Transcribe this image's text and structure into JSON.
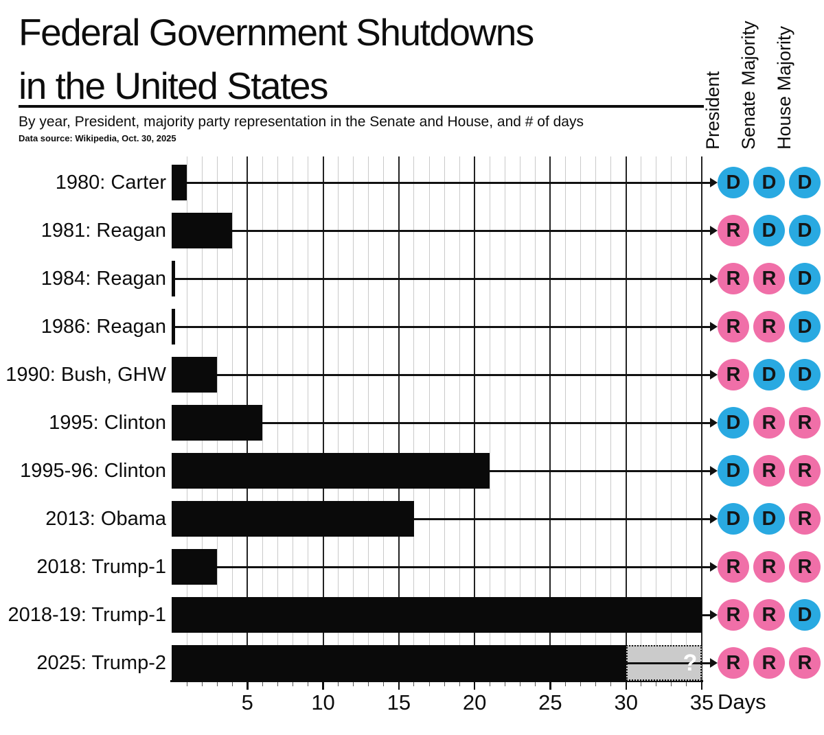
{
  "header": {
    "title_line1": "Federal Government Shutdowns",
    "title_line2": "in the United States",
    "subtitle": "By year, President, majority party representation in the Senate and House, and # of days",
    "source": "Data source: Wikipedia, Oct. 30, 2025"
  },
  "columns": [
    "President",
    "Senate Majority",
    "House Majority"
  ],
  "axis": {
    "ticks": [
      5,
      10,
      15,
      20,
      25,
      30,
      35
    ],
    "max": 35,
    "unit_label": "Days"
  },
  "party_colors": {
    "D": "#29a9e1",
    "R": "#f06fa8",
    "letter": "#151515"
  },
  "bar_color": "#0a0a0a",
  "estimate_style": {
    "fill": "#cbcbcb",
    "label_color": "#ffffff"
  },
  "chart_data": {
    "type": "bar",
    "orientation": "horizontal",
    "title": "Federal Government Shutdowns in the United States",
    "subtitle": "By year, President, majority party representation in the Senate and House, and # of days",
    "source": "Data source: Wikipedia, Oct. 30, 2025",
    "xlabel": "Days",
    "xlim": [
      0,
      35
    ],
    "grid": true,
    "rows": [
      {
        "label": "1980: Carter",
        "days": 1,
        "president": "D",
        "senate": "D",
        "house": "D"
      },
      {
        "label": "1981: Reagan",
        "days": 4,
        "president": "R",
        "senate": "D",
        "house": "D"
      },
      {
        "label": "1984: Reagan",
        "days": 0.2,
        "president": "R",
        "senate": "R",
        "house": "D"
      },
      {
        "label": "1986: Reagan",
        "days": 0.2,
        "president": "R",
        "senate": "R",
        "house": "D"
      },
      {
        "label": "1990: Bush, GHW",
        "days": 3,
        "president": "R",
        "senate": "D",
        "house": "D"
      },
      {
        "label": "1995: Clinton",
        "days": 6,
        "president": "D",
        "senate": "R",
        "house": "R"
      },
      {
        "label": "1995-96: Clinton",
        "days": 21,
        "president": "D",
        "senate": "R",
        "house": "R"
      },
      {
        "label": "2013: Obama",
        "days": 16,
        "president": "D",
        "senate": "D",
        "house": "R"
      },
      {
        "label": "2018: Trump-1",
        "days": 3,
        "president": "R",
        "senate": "R",
        "house": "R"
      },
      {
        "label": "2018-19: Trump-1",
        "days": 35,
        "president": "R",
        "senate": "R",
        "house": "D"
      },
      {
        "label": "2025: Trump-2",
        "days": 30,
        "estimate_to": 35,
        "estimate_label": "?",
        "president": "R",
        "senate": "R",
        "house": "R"
      }
    ]
  }
}
